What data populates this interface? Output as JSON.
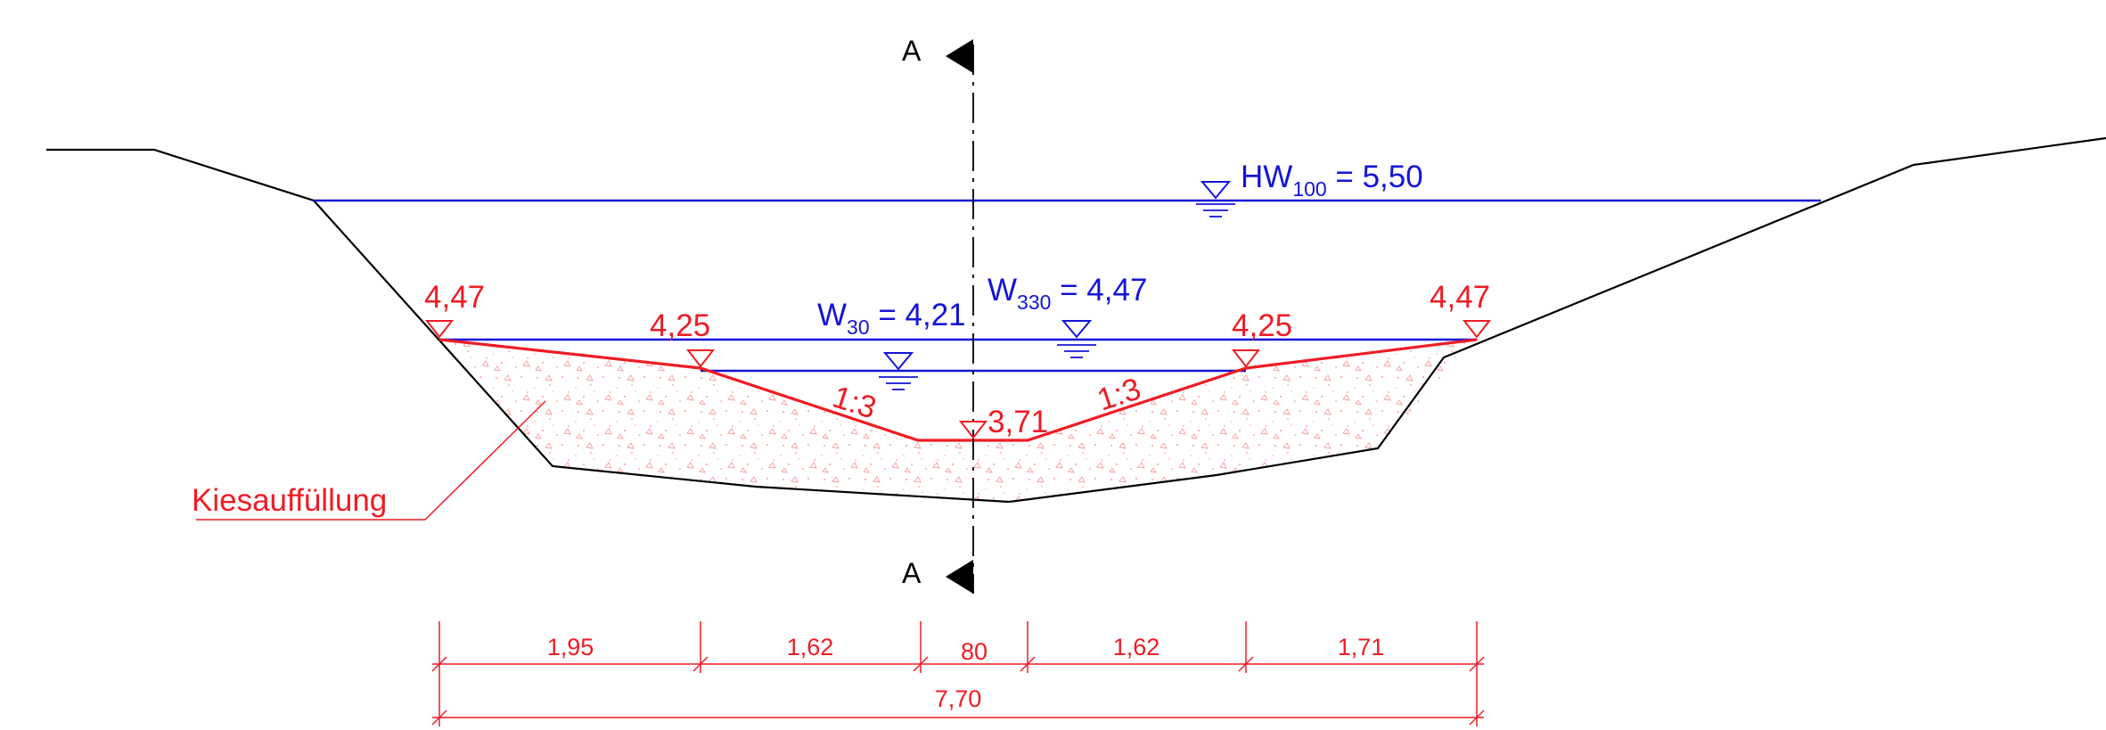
{
  "section_mark": {
    "label": "A"
  },
  "water_levels": {
    "hw100": {
      "base": "HW",
      "sub": "100",
      "value": " = 5,50"
    },
    "w30": {
      "base": "W",
      "sub": "30",
      "value": " = 4,21"
    },
    "w330": {
      "base": "W",
      "sub": "330",
      "value": " = 4,47"
    }
  },
  "elevations": {
    "left_top": "4,47",
    "left_mid": "4,25",
    "bottom": "3,71",
    "right_mid": "4,25",
    "right_top": "4,47"
  },
  "slopes": {
    "left": "1:3",
    "right": "1:3"
  },
  "fill_label": "Kiesauffüllung",
  "dimensions": {
    "segments": [
      "1,95",
      "1,62",
      "80",
      "1,62",
      "1,71"
    ],
    "total": "7,70"
  },
  "colors": {
    "design": "#ee1c25",
    "water": "#1414d7",
    "terrain": "#000000"
  }
}
